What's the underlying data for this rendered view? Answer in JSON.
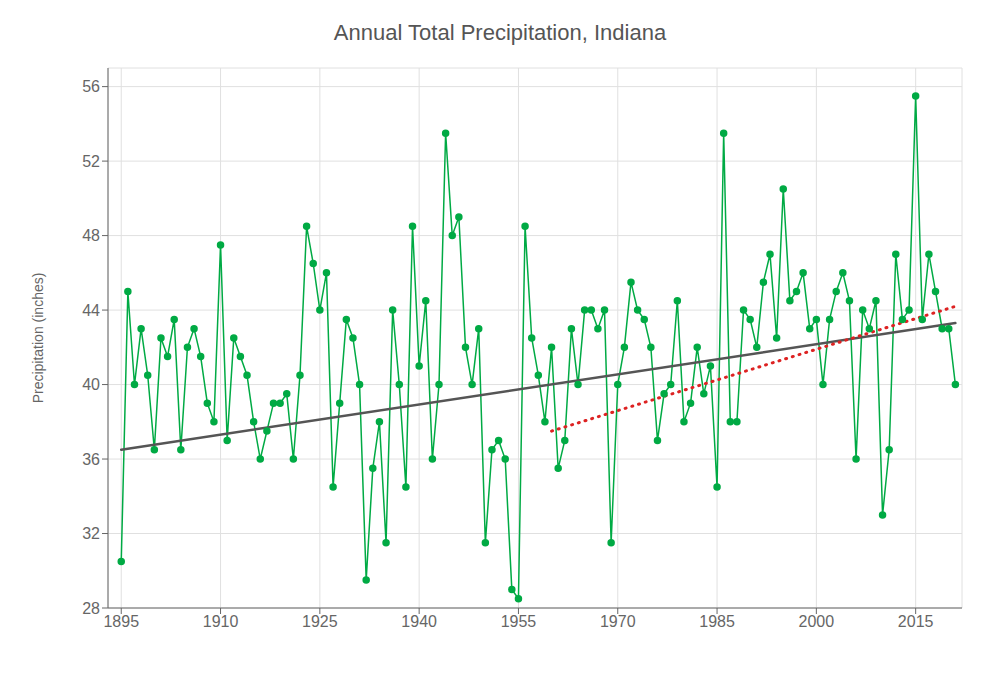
{
  "chart_data": {
    "type": "line",
    "title": "Annual Total Precipitation, Indiana",
    "y_label": "Precipitation (inches)",
    "xlim": [
      1893,
      2022
    ],
    "ylim": [
      28,
      57
    ],
    "xticks": [
      1895,
      1910,
      1925,
      1940,
      1955,
      1970,
      1985,
      2000,
      2015
    ],
    "yticks": [
      28,
      32,
      36,
      40,
      44,
      48,
      52,
      56
    ],
    "grid": true,
    "series": [
      {
        "color": "#00aa44",
        "marker": "circle",
        "line_style": "solid",
        "x": [
          1895,
          1896,
          1897,
          1898,
          1899,
          1900,
          1901,
          1902,
          1903,
          1904,
          1905,
          1906,
          1907,
          1908,
          1909,
          1910,
          1911,
          1912,
          1913,
          1914,
          1915,
          1916,
          1917,
          1918,
          1919,
          1920,
          1921,
          1922,
          1923,
          1924,
          1925,
          1926,
          1927,
          1928,
          1929,
          1930,
          1931,
          1932,
          1933,
          1934,
          1935,
          1936,
          1937,
          1938,
          1939,
          1940,
          1941,
          1942,
          1943,
          1944,
          1945,
          1946,
          1947,
          1948,
          1949,
          1950,
          1951,
          1952,
          1953,
          1954,
          1955,
          1956,
          1957,
          1958,
          1959,
          1960,
          1961,
          1962,
          1963,
          1964,
          1965,
          1966,
          1967,
          1968,
          1969,
          1970,
          1971,
          1972,
          1973,
          1974,
          1975,
          1976,
          1977,
          1978,
          1979,
          1980,
          1981,
          1982,
          1983,
          1984,
          1985,
          1986,
          1987,
          1988,
          1989,
          1990,
          1991,
          1992,
          1993,
          1994,
          1995,
          1996,
          1997,
          1998,
          1999,
          2000,
          2001,
          2002,
          2003,
          2004,
          2005,
          2006,
          2007,
          2008,
          2009,
          2010,
          2011,
          2012,
          2013,
          2014,
          2015,
          2016,
          2017,
          2018,
          2019,
          2020,
          2021
        ],
        "values": [
          30.5,
          45.0,
          40.0,
          43.0,
          40.5,
          36.5,
          42.5,
          41.5,
          43.5,
          36.5,
          42.0,
          43.0,
          41.5,
          39.0,
          38.0,
          47.5,
          37.0,
          42.5,
          41.5,
          40.5,
          38.0,
          36.0,
          37.5,
          39.0,
          39.0,
          39.5,
          36.0,
          40.5,
          48.5,
          46.5,
          44.0,
          46.0,
          34.5,
          39.0,
          43.5,
          42.5,
          40.0,
          29.5,
          35.5,
          38.0,
          31.5,
          44.0,
          40.0,
          34.5,
          48.5,
          41.0,
          44.5,
          36.0,
          40.0,
          53.5,
          48.0,
          49.0,
          42.0,
          40.0,
          43.0,
          31.5,
          36.5,
          37.0,
          36.0,
          29.0,
          28.5,
          48.5,
          42.5,
          40.5,
          38.0,
          42.0,
          35.5,
          37.0,
          43.0,
          40.0,
          44.0,
          44.0,
          43.0,
          44.0,
          31.5,
          40.0,
          42.0,
          45.5,
          44.0,
          43.5,
          42.0,
          37.0,
          39.5,
          40.0,
          44.5,
          38.0,
          39.0,
          42.0,
          39.5,
          41.0,
          34.5,
          53.5,
          38.0,
          38.0,
          44.0,
          43.5,
          42.0,
          45.5,
          47.0,
          42.5,
          50.5,
          44.5,
          45.0,
          46.0,
          43.0,
          43.5,
          40.0,
          43.5,
          45.0,
          46.0,
          44.5,
          36.0,
          44.0,
          43.0,
          44.5,
          33.0,
          36.5,
          47.0,
          43.5,
          44.0,
          55.5,
          43.5,
          47.0,
          45.0,
          43.0,
          43.0,
          40.0
        ]
      },
      {
        "color": "#555555",
        "marker": "none",
        "line_style": "solid",
        "x": [
          1895,
          2021
        ],
        "values": [
          36.5,
          43.3
        ]
      },
      {
        "color": "#dd2222",
        "marker": "none",
        "line_style": "dotted",
        "x": [
          1960,
          2021
        ],
        "values": [
          37.5,
          44.2
        ]
      }
    ]
  }
}
